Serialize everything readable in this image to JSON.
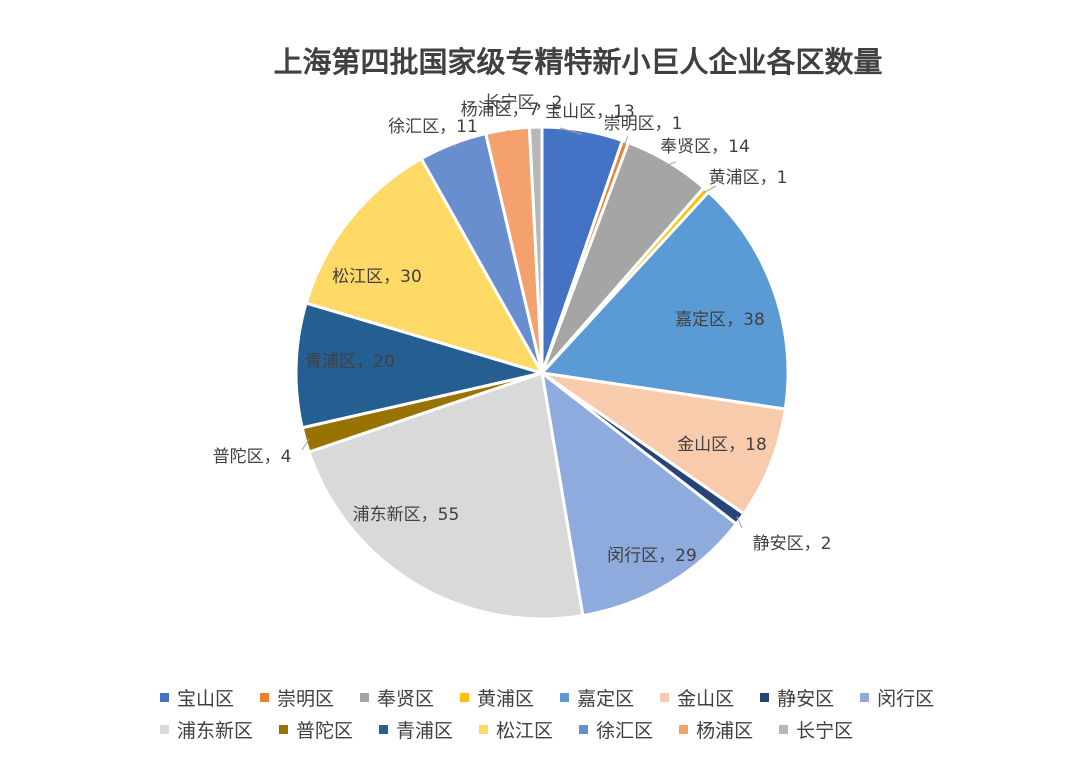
{
  "chart_data": {
    "type": "pie",
    "title": "上海第四批国家级专精特新小巨人企业各区数量",
    "label_separator": "，",
    "legend_position": "bottom",
    "slices": [
      {
        "name": "宝山区",
        "value": 13,
        "color": "#4472C4"
      },
      {
        "name": "崇明区",
        "value": 1,
        "color": "#ED7D31"
      },
      {
        "name": "奉贤区",
        "value": 14,
        "color": "#A5A5A5"
      },
      {
        "name": "黄浦区",
        "value": 1,
        "color": "#FFC000"
      },
      {
        "name": "嘉定区",
        "value": 38,
        "color": "#5B9BD5"
      },
      {
        "name": "金山区",
        "value": 18,
        "color": "#F8CBAD"
      },
      {
        "name": "静安区",
        "value": 2,
        "color": "#264478"
      },
      {
        "name": "闵行区",
        "value": 29,
        "color": "#8FAADC"
      },
      {
        "name": "浦东新区",
        "value": 55,
        "color": "#D9D9D9"
      },
      {
        "name": "普陀区",
        "value": 4,
        "color": "#997300"
      },
      {
        "name": "青浦区",
        "value": 20,
        "color": "#255E91"
      },
      {
        "name": "松江区",
        "value": 30,
        "color": "#FFD966"
      },
      {
        "name": "徐汇区",
        "value": 11,
        "color": "#698ED0"
      },
      {
        "name": "杨浦区",
        "value": 7,
        "color": "#F4A16D"
      },
      {
        "name": "长宁区",
        "value": 2,
        "color": "#B7B7B7"
      }
    ]
  }
}
